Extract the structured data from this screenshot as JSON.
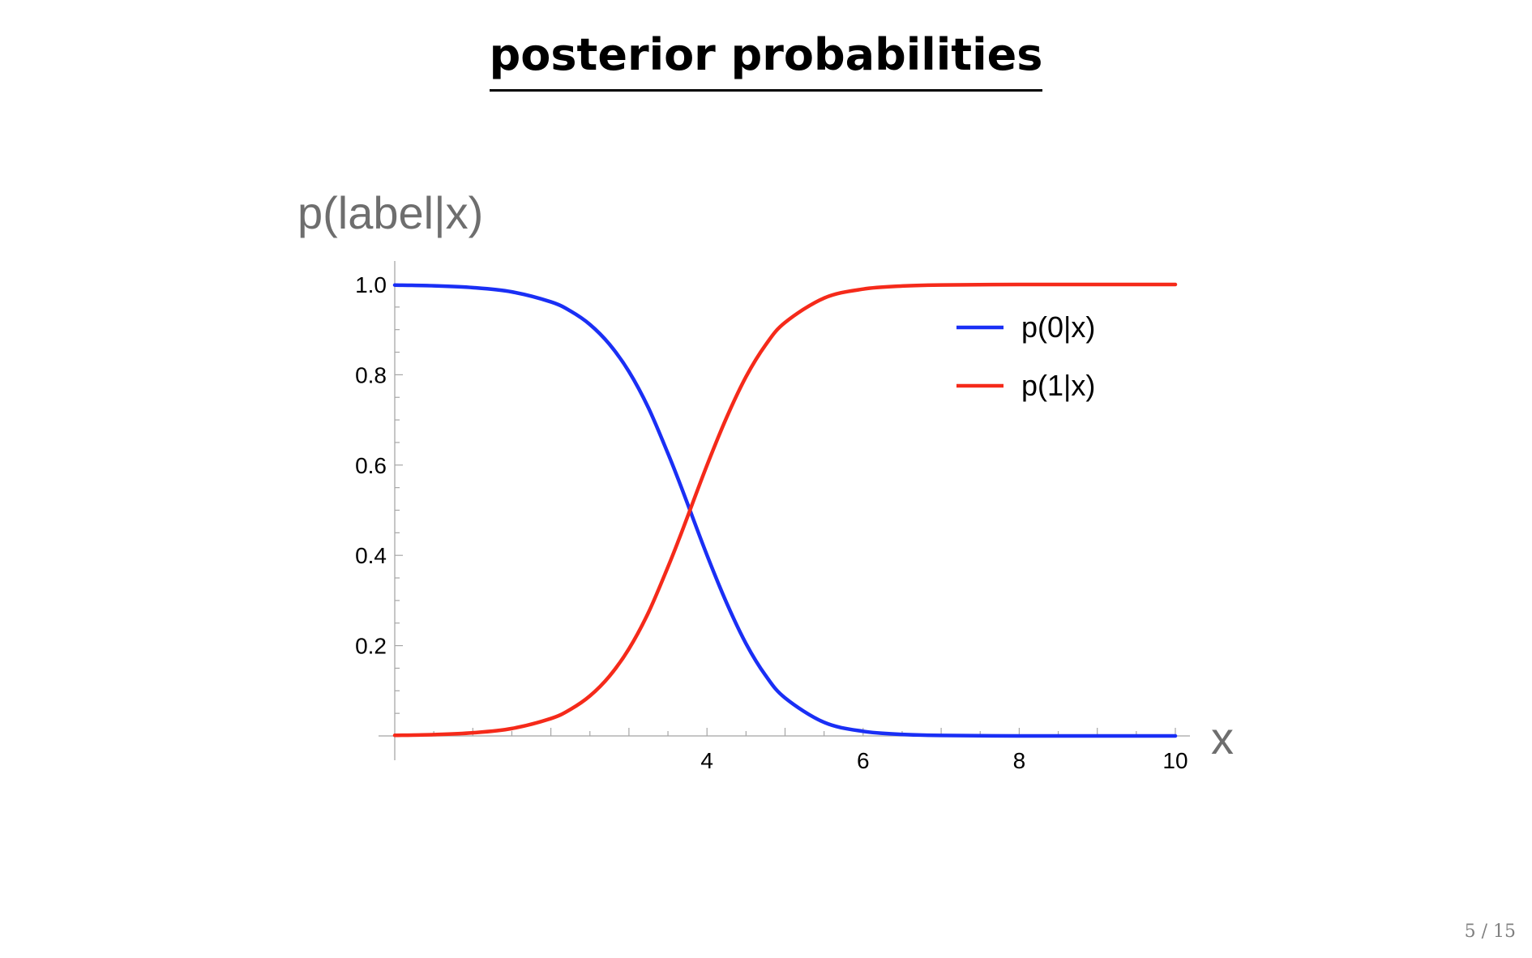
{
  "slide": {
    "title": "posterior probabilities",
    "page_number": "5 / 15"
  },
  "chart_data": {
    "type": "line",
    "title": "posterior probabilities",
    "xlabel": "x",
    "ylabel": "p(label|x)",
    "xlim": [
      0,
      10
    ],
    "ylim": [
      0,
      1
    ],
    "x_ticks": [
      4,
      6,
      8,
      10
    ],
    "y_ticks": [
      0.2,
      0.4,
      0.6,
      0.8,
      1.0
    ],
    "x_tick_labels": [
      "4",
      "6",
      "8",
      "10"
    ],
    "y_tick_labels": [
      "0.2",
      "0.4",
      "0.6",
      "0.8",
      "1.0"
    ],
    "legend_position": "top-right",
    "grid": false,
    "series": [
      {
        "name": "p(0|x)",
        "color": "#1a2ff5",
        "x": [
          0,
          0.5,
          1,
          1.5,
          2,
          2.25,
          2.5,
          2.75,
          3,
          3.25,
          3.5,
          3.65,
          3.75,
          4,
          4.25,
          4.5,
          4.75,
          5,
          5.5,
          6,
          6.5,
          7,
          8,
          9,
          10
        ],
        "values": [
          0.9987,
          0.9971,
          0.9931,
          0.9836,
          0.9615,
          0.9413,
          0.9114,
          0.8677,
          0.8071,
          0.7266,
          0.6256,
          0.5603,
          0.5147,
          0.4005,
          0.2952,
          0.2044,
          0.1341,
          0.0842,
          0.0301,
          0.0102,
          0.0034,
          0.0011,
          0.0001,
          0.0,
          0.0
        ]
      },
      {
        "name": "p(1|x)",
        "color": "#f52a1a",
        "x": [
          0,
          0.5,
          1,
          1.5,
          2,
          2.25,
          2.5,
          2.75,
          3,
          3.25,
          3.5,
          3.65,
          3.75,
          4,
          4.25,
          4.5,
          4.75,
          5,
          5.5,
          6,
          6.5,
          7,
          8,
          9,
          10
        ],
        "values": [
          0.0013,
          0.0029,
          0.0069,
          0.0164,
          0.0385,
          0.0587,
          0.0886,
          0.1323,
          0.1929,
          0.2734,
          0.3744,
          0.4397,
          0.4853,
          0.5995,
          0.7048,
          0.7956,
          0.8659,
          0.9158,
          0.9699,
          0.9898,
          0.9966,
          0.9989,
          0.9999,
          1.0,
          1.0
        ]
      }
    ]
  }
}
